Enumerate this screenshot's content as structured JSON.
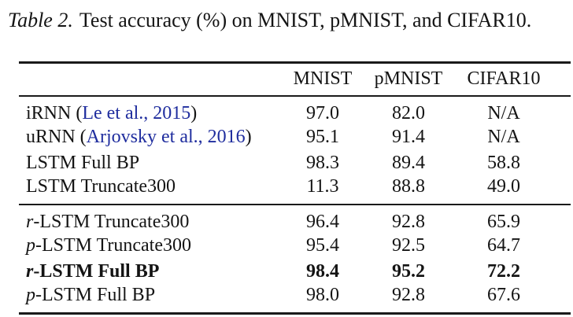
{
  "caption": {
    "label": "Table 2.",
    "text": "Test accuracy (%) on MNIST, pMNIST, and CIFAR10."
  },
  "table": {
    "header": {
      "col0": "",
      "col1": "MNIST",
      "col2": "pMNIST",
      "col3": "CIFAR10"
    },
    "rows": [
      {
        "pre": "",
        "main": "iRNN (",
        "cite": "Le et al., 2015",
        "post": ")",
        "mnist": "97.0",
        "pmnist": "82.0",
        "cifar10": "N/A",
        "bold": false
      },
      {
        "pre": "",
        "main": "uRNN (",
        "cite": "Arjovsky et al., 2016",
        "post": ")",
        "mnist": "95.1",
        "pmnist": "91.4",
        "cifar10": "N/A",
        "bold": false
      },
      {
        "pre": "",
        "main": "LSTM Full BP",
        "cite": "",
        "post": "",
        "mnist": "98.3",
        "pmnist": "89.4",
        "cifar10": "58.8",
        "bold": false
      },
      {
        "pre": "",
        "main": "LSTM Truncate300",
        "cite": "",
        "post": "",
        "mnist": "11.3",
        "pmnist": "88.8",
        "cifar10": "49.0",
        "bold": false
      },
      {
        "pre": "r",
        "main": "-LSTM Truncate300",
        "cite": "",
        "post": "",
        "mnist": "96.4",
        "pmnist": "92.8",
        "cifar10": "65.9",
        "bold": false
      },
      {
        "pre": "p",
        "main": "-LSTM Truncate300",
        "cite": "",
        "post": "",
        "mnist": "95.4",
        "pmnist": "92.5",
        "cifar10": "64.7",
        "bold": false
      },
      {
        "pre": "r",
        "main": "-LSTM Full BP",
        "cite": "",
        "post": "",
        "mnist": "98.4",
        "pmnist": "95.2",
        "cifar10": "72.2",
        "bold": true
      },
      {
        "pre": "p",
        "main": "-LSTM Full BP",
        "cite": "",
        "post": "",
        "mnist": "98.0",
        "pmnist": "92.8",
        "cifar10": "67.6",
        "bold": false
      }
    ]
  },
  "colors": {
    "text": "#141414",
    "citation": "#1f2d9e",
    "rule": "#1a1a1a",
    "background": "#ffffff"
  }
}
